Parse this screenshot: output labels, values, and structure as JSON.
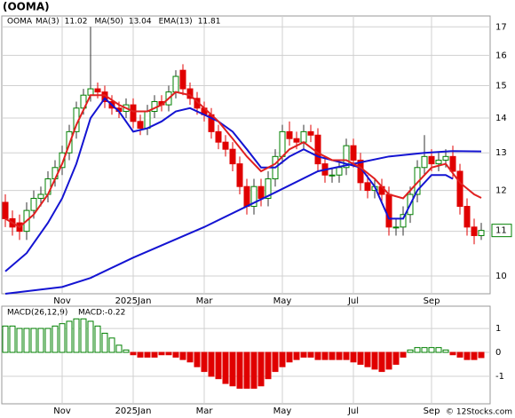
{
  "chart_data": [
    {
      "type": "candlestick",
      "title": "(OOMA)",
      "ticker": "OOMA",
      "categories": [
        null,
        null,
        null,
        null,
        null,
        null,
        null,
        null,
        "Nov",
        null,
        null,
        null,
        null,
        null,
        null,
        null,
        null,
        null,
        "2025Jan",
        null,
        null,
        null,
        null,
        null,
        null,
        null,
        null,
        null,
        "Mar",
        null,
        null,
        null,
        null,
        null,
        null,
        null,
        null,
        null,
        null,
        "May",
        null,
        null,
        null,
        null,
        null,
        null,
        null,
        null,
        null,
        "Jul",
        null,
        null,
        null,
        null,
        null,
        null,
        null,
        null,
        null,
        null,
        "Sep",
        null,
        null,
        null,
        null,
        null,
        null,
        null
      ],
      "open": [
        11.7,
        11.3,
        11.2,
        11.0,
        11.5,
        11.8,
        11.9,
        12.3,
        12.6,
        13.0,
        13.6,
        14.3,
        14.7,
        14.9,
        14.8,
        14.5,
        14.3,
        14.2,
        14.4,
        13.9,
        13.7,
        14.2,
        14.5,
        14.4,
        14.8,
        15.5,
        14.9,
        14.6,
        14.3,
        14.1,
        13.6,
        13.3,
        13.1,
        12.7,
        12.1,
        11.6,
        12.1,
        11.8,
        12.3,
        12.9,
        13.6,
        13.4,
        13.3,
        13.6,
        13.5,
        12.7,
        12.4,
        12.4,
        12.6,
        13.2,
        12.8,
        12.2,
        12.0,
        12.1,
        11.9,
        11.1,
        11.1,
        11.4,
        11.9,
        12.6,
        12.9,
        12.7,
        12.8,
        12.9,
        12.5,
        11.6,
        11.1,
        10.9
      ],
      "high": [
        11.9,
        11.5,
        11.4,
        11.7,
        12.0,
        12.1,
        12.5,
        12.8,
        13.2,
        13.8,
        14.5,
        14.9,
        17.0,
        15.1,
        15.0,
        14.7,
        14.5,
        14.6,
        14.6,
        14.1,
        14.4,
        14.7,
        14.7,
        15.0,
        15.5,
        15.7,
        15.1,
        14.8,
        14.5,
        14.3,
        13.8,
        13.5,
        13.3,
        12.9,
        12.3,
        12.3,
        12.3,
        12.5,
        13.1,
        13.8,
        13.9,
        13.6,
        13.8,
        13.8,
        13.7,
        12.9,
        12.6,
        12.8,
        13.4,
        13.4,
        13.0,
        12.4,
        12.3,
        12.3,
        12.1,
        11.3,
        11.6,
        12.1,
        12.8,
        13.5,
        13.1,
        13.0,
        13.1,
        13.2,
        12.7,
        11.8,
        11.3,
        11.2
      ],
      "low": [
        11.1,
        10.9,
        10.8,
        10.8,
        11.3,
        11.6,
        11.7,
        12.1,
        12.4,
        12.8,
        13.4,
        14.1,
        14.5,
        14.6,
        14.3,
        14.1,
        14.0,
        14.0,
        13.7,
        13.5,
        13.5,
        14.0,
        14.2,
        14.2,
        14.6,
        14.7,
        14.4,
        14.1,
        13.9,
        13.4,
        13.1,
        12.9,
        12.5,
        11.9,
        11.4,
        11.4,
        11.6,
        11.6,
        12.1,
        12.7,
        13.2,
        13.1,
        13.1,
        13.3,
        12.5,
        12.2,
        12.2,
        12.2,
        12.4,
        12.6,
        12.0,
        11.8,
        11.8,
        11.7,
        10.9,
        10.9,
        10.9,
        11.2,
        11.7,
        12.4,
        12.5,
        12.5,
        12.6,
        12.3,
        11.4,
        10.9,
        10.7,
        10.8
      ],
      "close": [
        11.3,
        11.1,
        11.0,
        11.5,
        11.8,
        11.9,
        12.3,
        12.6,
        13.0,
        13.6,
        14.3,
        14.7,
        14.9,
        14.8,
        14.5,
        14.3,
        14.2,
        14.4,
        13.9,
        13.7,
        14.2,
        14.5,
        14.4,
        14.8,
        15.3,
        14.9,
        14.6,
        14.3,
        14.1,
        13.6,
        13.3,
        13.1,
        12.7,
        12.1,
        11.6,
        12.1,
        11.8,
        12.3,
        12.9,
        13.6,
        13.4,
        13.3,
        13.6,
        13.5,
        12.7,
        12.4,
        12.4,
        12.6,
        13.2,
        12.8,
        12.2,
        12.0,
        12.1,
        11.9,
        11.1,
        11.1,
        11.4,
        11.9,
        12.6,
        12.9,
        12.7,
        12.8,
        12.9,
        12.5,
        11.6,
        11.1,
        10.9,
        11.02
      ],
      "up_color": "#008000",
      "down_color": "#e00000",
      "log_scale": true,
      "grid": true,
      "ylim": [
        9.63,
        17.4
      ],
      "yticks": [
        10,
        11,
        12,
        13,
        14,
        15,
        16,
        17
      ],
      "last_price": {
        "value": 11.02,
        "label": "11"
      },
      "lines": [
        {
          "name": "MA(3)",
          "color": "#1414d2",
          "legend_value": 11.02,
          "x": [
            0,
            3,
            6,
            8,
            10,
            12,
            14,
            16,
            18,
            20,
            22,
            24,
            26,
            28,
            30,
            32,
            34,
            36,
            38,
            40,
            42,
            44,
            46,
            48,
            50,
            52,
            54,
            56,
            58,
            60,
            62,
            63
          ],
          "values": [
            10.1,
            10.5,
            11.2,
            11.8,
            12.7,
            14.0,
            14.6,
            14.2,
            13.6,
            13.7,
            13.9,
            14.2,
            14.3,
            14.1,
            13.9,
            13.6,
            13.1,
            12.6,
            12.6,
            12.9,
            13.1,
            12.9,
            12.8,
            12.7,
            12.6,
            12.1,
            11.3,
            11.3,
            12.0,
            12.4,
            12.4,
            12.3
          ]
        },
        {
          "name": "MA(50)",
          "color": "#1414d2",
          "legend_value": 13.04,
          "x": [
            0,
            8,
            12,
            18,
            28,
            38,
            44,
            49,
            54,
            59,
            63,
            67
          ],
          "values": [
            9.63,
            9.77,
            9.96,
            10.4,
            11.1,
            11.95,
            12.5,
            12.7,
            12.9,
            13.0,
            13.05,
            13.04
          ]
        },
        {
          "name": "EMA(13)",
          "color": "#e02020",
          "legend_value": 11.81,
          "x": [
            0,
            2,
            4,
            6,
            8,
            10,
            12,
            14,
            16,
            18,
            20,
            22,
            24,
            26,
            28,
            30,
            32,
            34,
            36,
            38,
            40,
            42,
            44,
            46,
            48,
            50,
            52,
            54,
            56,
            58,
            60,
            62,
            64,
            66,
            67
          ],
          "values": [
            11.3,
            11.1,
            11.4,
            11.9,
            12.7,
            13.8,
            14.7,
            14.7,
            14.4,
            14.2,
            14.2,
            14.4,
            14.8,
            14.7,
            14.3,
            13.9,
            13.4,
            12.9,
            12.5,
            12.7,
            13.1,
            13.3,
            13.0,
            12.8,
            12.8,
            12.6,
            12.3,
            11.9,
            11.8,
            12.2,
            12.6,
            12.7,
            12.2,
            11.9,
            11.81
          ]
        }
      ]
    },
    {
      "type": "bar",
      "title": "MACD(26,12,9)",
      "current": {
        "value": -0.22,
        "label": "MACD:-0.22"
      },
      "categories": [
        null,
        null,
        null,
        null,
        null,
        null,
        null,
        null,
        "Nov",
        null,
        null,
        null,
        null,
        null,
        null,
        null,
        null,
        null,
        "2025Jan",
        null,
        null,
        null,
        null,
        null,
        null,
        null,
        null,
        null,
        "Mar",
        null,
        null,
        null,
        null,
        null,
        null,
        null,
        null,
        null,
        null,
        "May",
        null,
        null,
        null,
        null,
        null,
        null,
        null,
        null,
        null,
        "Jul",
        null,
        null,
        null,
        null,
        null,
        null,
        null,
        null,
        null,
        null,
        "Sep",
        null,
        null,
        null,
        null,
        null,
        null,
        null
      ],
      "values": [
        1.1,
        1.1,
        1.0,
        1.0,
        1.0,
        1.0,
        1.0,
        1.1,
        1.2,
        1.3,
        1.4,
        1.4,
        1.3,
        1.1,
        0.8,
        0.6,
        0.3,
        0.1,
        -0.1,
        -0.2,
        -0.2,
        -0.2,
        -0.1,
        -0.1,
        -0.2,
        -0.3,
        -0.4,
        -0.6,
        -0.8,
        -1.0,
        -1.1,
        -1.3,
        -1.4,
        -1.5,
        -1.5,
        -1.5,
        -1.4,
        -1.1,
        -0.8,
        -0.6,
        -0.4,
        -0.3,
        -0.2,
        -0.2,
        -0.3,
        -0.3,
        -0.3,
        -0.3,
        -0.3,
        -0.4,
        -0.5,
        -0.6,
        -0.7,
        -0.8,
        -0.7,
        -0.5,
        -0.2,
        0.1,
        0.2,
        0.2,
        0.2,
        0.2,
        0.1,
        -0.1,
        -0.2,
        -0.3,
        -0.3,
        -0.22
      ],
      "up_color": "#008000",
      "down_color": "#e00000",
      "ylim": [
        -2.15,
        1.93
      ],
      "yticks": [
        -1,
        0,
        1
      ],
      "grid": true
    }
  ],
  "footer": "© 12Stocks.com"
}
